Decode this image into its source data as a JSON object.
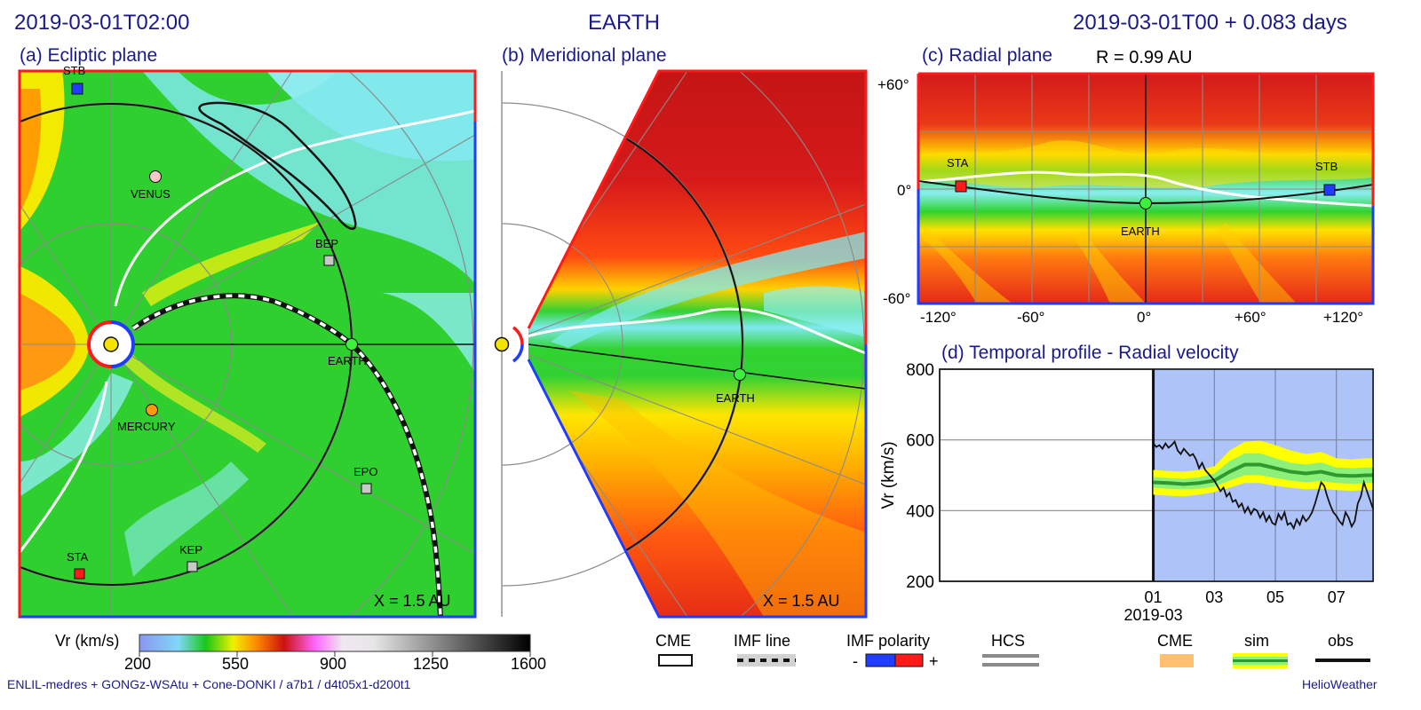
{
  "header": {
    "left_time": "2019-03-01T02:00",
    "center_title": "EARTH",
    "right_time": "2019-03-01T00 +  0.083 days"
  },
  "panels": {
    "a": {
      "title": "(a) Ecliptic plane",
      "scale_label": "X = 1.5 AU"
    },
    "b": {
      "title": "(b) Meridional plane",
      "scale_label": "X = 1.5 AU"
    },
    "c": {
      "title": "(c) Radial plane",
      "subtitle": "R = 0.99 AU",
      "y_ticks": [
        "+60°",
        "0°",
        "-60°"
      ],
      "x_ticks": [
        "-120°",
        "-60°",
        "0°",
        "+60°",
        "+120°"
      ]
    },
    "d": {
      "title": "(d) Temporal profile - Radial velocity"
    }
  },
  "bodies": {
    "stb": "STB",
    "sta": "STA",
    "venus": "VENUS",
    "mercury": "MERCURY",
    "earth": "EARTH",
    "bep": "BEP",
    "epo": "EPO",
    "kep": "KEP"
  },
  "colorbar": {
    "label": "Vr (km/s)",
    "ticks": [
      "200",
      "550",
      "900",
      "1250",
      "1600"
    ],
    "range": [
      200,
      1600
    ]
  },
  "legend": {
    "cme": "CME",
    "imf_line": "IMF line",
    "imf_polarity": "IMF polarity",
    "minus": "-",
    "plus": "+",
    "hcs": "HCS",
    "cme2": "CME",
    "sim": "sim",
    "obs": "obs"
  },
  "footer": {
    "left": "ENLIL-medres + GONGz-WSAtu + Cone-DONKI / a7b1 / d4t05x1-d200t1",
    "right": "HelioWeather"
  },
  "colors": {
    "navy": "#1a1a8c",
    "imf_neg": "#1f3cff",
    "imf_pos": "#ff1a1a",
    "cme_shade": "#ffc070",
    "sim_band_outer": "#ffff00",
    "sim_band_inner": "#8cf07a",
    "sim_line": "#2e9a2e",
    "temporal_bg": "#aec3f7"
  },
  "chart_data": [
    {
      "type": "line",
      "panel": "d",
      "title": "(d) Temporal profile - Radial velocity",
      "ylabel": "Vr (km/s)",
      "xlabel": "2019-03",
      "ylim": [
        200,
        800
      ],
      "yticks": [
        200,
        400,
        600,
        800
      ],
      "xlim_days": [
        -6,
        8.2
      ],
      "xticks": [
        {
          "day": 1,
          "label": "01"
        },
        {
          "day": 3,
          "label": "03"
        },
        {
          "day": 5,
          "label": "05"
        },
        {
          "day": 7,
          "label": "07"
        }
      ],
      "grid": true,
      "series": [
        {
          "name": "sim",
          "x": [
            1,
            1.5,
            2,
            2.5,
            3,
            3.5,
            4,
            4.5,
            5,
            5.5,
            6,
            6.5,
            7,
            7.5,
            8,
            8.2
          ],
          "values": [
            480,
            478,
            475,
            478,
            485,
            510,
            530,
            530,
            520,
            510,
            505,
            510,
            500,
            498,
            500,
            500
          ],
          "inner_band": [
            [
              465,
              495
            ],
            [
              462,
              492
            ],
            [
              460,
              490
            ],
            [
              462,
              494
            ],
            [
              468,
              505
            ],
            [
              485,
              540
            ],
            [
              500,
              562
            ],
            [
              500,
              562
            ],
            [
              492,
              548
            ],
            [
              485,
              535
            ],
            [
              480,
              530
            ],
            [
              484,
              536
            ],
            [
              478,
              522
            ],
            [
              476,
              520
            ],
            [
              478,
              522
            ],
            [
              478,
              522
            ]
          ],
          "outer_band": [
            [
              445,
              515
            ],
            [
              442,
              512
            ],
            [
              440,
              510
            ],
            [
              445,
              515
            ],
            [
              452,
              525
            ],
            [
              465,
              570
            ],
            [
              478,
              595
            ],
            [
              478,
              598
            ],
            [
              470,
              585
            ],
            [
              465,
              570
            ],
            [
              460,
              560
            ],
            [
              462,
              566
            ],
            [
              458,
              548
            ],
            [
              456,
              545
            ],
            [
              458,
              548
            ],
            [
              458,
              548
            ]
          ]
        },
        {
          "name": "obs",
          "x": [
            1,
            1.1,
            1.2,
            1.3,
            1.4,
            1.5,
            1.6,
            1.7,
            1.8,
            1.9,
            2,
            2.1,
            2.2,
            2.3,
            2.4,
            2.5,
            2.6,
            2.7,
            2.8,
            2.9,
            3,
            3.1,
            3.2,
            3.3,
            3.4,
            3.5,
            3.6,
            3.7,
            3.8,
            3.9,
            4,
            4.1,
            4.2,
            4.3,
            4.4,
            4.5,
            4.6,
            4.7,
            4.8,
            4.9,
            5,
            5.1,
            5.2,
            5.3,
            5.4,
            5.5,
            5.6,
            5.7,
            5.8,
            5.9,
            6,
            6.1,
            6.2,
            6.3,
            6.4,
            6.5,
            6.6,
            6.7,
            6.8,
            6.9,
            7,
            7.1,
            7.2,
            7.3,
            7.4,
            7.5,
            7.6,
            7.7,
            7.8,
            7.9,
            8,
            8.1,
            8.2
          ],
          "values": [
            590,
            580,
            585,
            575,
            590,
            578,
            585,
            595,
            570,
            560,
            575,
            565,
            555,
            560,
            545,
            520,
            535,
            515,
            505,
            495,
            485,
            470,
            455,
            465,
            440,
            450,
            425,
            430,
            410,
            420,
            395,
            410,
            390,
            405,
            400,
            380,
            395,
            370,
            385,
            365,
            360,
            390,
            375,
            395,
            360,
            365,
            350,
            375,
            360,
            385,
            370,
            380,
            395,
            420,
            450,
            480,
            470,
            440,
            415,
            395,
            385,
            370,
            360,
            395,
            380,
            355,
            370,
            420,
            440,
            480,
            455,
            430,
            405
          ]
        }
      ]
    }
  ]
}
